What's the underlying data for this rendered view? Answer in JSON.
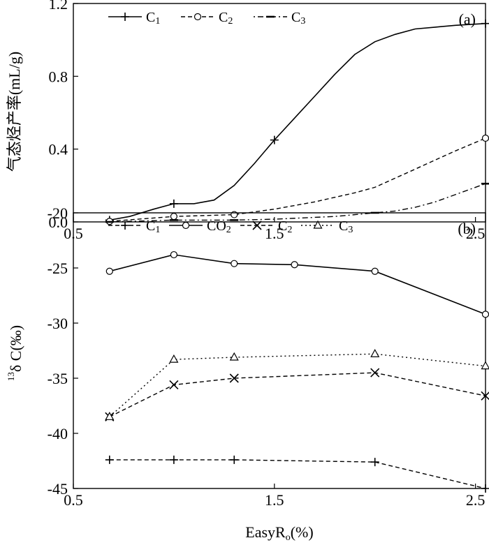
{
  "chart_data": [
    {
      "type": "line",
      "panel_label": "(a)",
      "ylabel": "气态烃产率(mL/g)",
      "xlim": [
        0.5,
        2.55
      ],
      "ylim": [
        0.0,
        1.2
      ],
      "x_ticks": [
        "0.5",
        "1.5",
        "2.5"
      ],
      "x_tick_values": [
        0.5,
        1.5,
        2.5
      ],
      "y_ticks": [
        "0.0",
        "0.4",
        "0.8",
        "1.2"
      ],
      "y_tick_values": [
        0.0,
        0.4,
        0.8,
        1.2
      ],
      "legend_position": "top-left",
      "series": [
        {
          "name": "C",
          "sub": "1",
          "marker": "plus",
          "dash": "solid",
          "x": [
            0.68,
            0.78,
            0.9,
            1.0,
            1.1,
            1.2,
            1.3,
            1.4,
            1.5,
            1.6,
            1.7,
            1.8,
            1.9,
            2.0,
            2.1,
            2.2,
            2.3,
            2.4,
            2.55
          ],
          "y": [
            0.01,
            0.03,
            0.07,
            0.1,
            0.1,
            0.12,
            0.2,
            0.32,
            0.45,
            0.57,
            0.69,
            0.81,
            0.92,
            0.99,
            1.03,
            1.06,
            1.07,
            1.08,
            1.09
          ],
          "marker_x": [
            0.68,
            1.0,
            1.5,
            2.55
          ],
          "marker_y": [
            0.01,
            0.1,
            0.45,
            1.09
          ]
        },
        {
          "name": "C",
          "sub": "2",
          "marker": "circle",
          "dash": "dashed",
          "x": [
            0.68,
            1.0,
            1.3,
            1.5,
            1.7,
            1.9,
            2.0,
            2.1,
            2.2,
            2.3,
            2.4,
            2.55
          ],
          "y": [
            0.003,
            0.03,
            0.04,
            0.07,
            0.11,
            0.16,
            0.19,
            0.24,
            0.29,
            0.34,
            0.39,
            0.46
          ],
          "marker_x": [
            0.68,
            1.0,
            1.3,
            2.55
          ],
          "marker_y": [
            0.003,
            0.03,
            0.04,
            0.46
          ]
        },
        {
          "name": "C",
          "sub": "3",
          "marker": "dash",
          "dash": "dashdot",
          "x": [
            0.68,
            1.0,
            1.3,
            1.5,
            1.8,
            2.0,
            2.1,
            2.2,
            2.3,
            2.4,
            2.55
          ],
          "y": [
            0.0,
            0.01,
            0.01,
            0.015,
            0.03,
            0.05,
            0.06,
            0.08,
            0.11,
            0.15,
            0.21
          ],
          "marker_x": [
            0.68,
            1.0,
            1.3,
            2.0,
            2.55
          ],
          "marker_y": [
            0.0,
            0.01,
            0.01,
            0.05,
            0.21
          ]
        }
      ]
    },
    {
      "type": "line",
      "panel_label": "(b)",
      "ylabel": "δ C(‰)",
      "ylabel_superscript": "13",
      "xlabel": "EasyR",
      "xlabel_sub": "o",
      "xlabel_unit": "(%)",
      "xlim": [
        0.5,
        2.55
      ],
      "ylim": [
        -45,
        -20
      ],
      "x_ticks": [
        "0.5",
        "1.5",
        "2.5"
      ],
      "x_tick_values": [
        0.5,
        1.5,
        2.5
      ],
      "y_ticks": [
        "-20",
        "-25",
        "-30",
        "-35",
        "-40",
        "-45"
      ],
      "y_tick_values": [
        -20,
        -25,
        -30,
        -35,
        -40,
        -45
      ],
      "legend_position": "top-left",
      "series": [
        {
          "name": "C",
          "sub": "1",
          "marker": "plus",
          "dash": "dashed",
          "x": [
            0.68,
            1.0,
            1.3,
            2.0,
            2.55
          ],
          "y": [
            -42.4,
            -42.4,
            -42.4,
            -42.6,
            -45.0
          ]
        },
        {
          "name": "CO",
          "sub": "2",
          "marker": "circle",
          "dash": "solid",
          "x": [
            0.68,
            1.0,
            1.3,
            1.6,
            2.0,
            2.55
          ],
          "y": [
            -25.3,
            -23.8,
            -24.6,
            -24.7,
            -25.3,
            -29.2
          ]
        },
        {
          "name": "C",
          "sub": "2",
          "marker": "x",
          "dash": "dashed",
          "x": [
            0.68,
            1.0,
            1.3,
            2.0,
            2.55
          ],
          "y": [
            -38.5,
            -35.6,
            -35.0,
            -34.5,
            -36.6
          ]
        },
        {
          "name": "C",
          "sub": "3",
          "marker": "triangle",
          "dash": "dotted",
          "x": [
            0.68,
            1.0,
            1.3,
            2.0,
            2.55
          ],
          "y": [
            -38.5,
            -33.3,
            -33.1,
            -32.8,
            -33.9
          ]
        }
      ]
    }
  ]
}
